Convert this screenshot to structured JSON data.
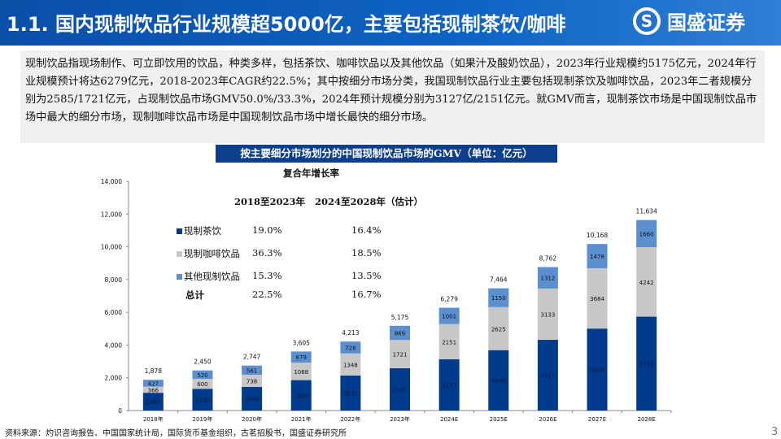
{
  "header": {
    "title": "1.1. 国内现制饮品行业规模超5000亿，主要包括现制茶饮/咖啡",
    "logo_text": "国盛证券",
    "logo_mark": "S"
  },
  "summary": "现制饮品指现场制作、可立即饮用的饮品，种类多样，包括茶饮、咖啡饮品以及其他饮品（如果汁及酸奶饮品），2023年行业规模约5175亿元，2024年行业规模预计将达6279亿元，2018-2023年CAGR约22.5%；其中按细分市场分类，我国现制饮品行业主要包括现制茶饮及咖啡饮品，2023年二者规模分别为2585/1721亿元，占现制饮品市场GMV50.0%/33.3%，2024年预计规模分别为3127亿/2151亿元。就GMV而言，现制茶饮市场是中国现制饮品市场中最大的细分市场，现制咖啡饮品市场是中国现制饮品市场中增长最快的细分市场。",
  "cagr_table": {
    "title": "复合年增长率",
    "col1": "2018至2023年",
    "col2": "2024至2028年（估计）",
    "rows": [
      {
        "label": "现制茶饮",
        "v1": "19.0%",
        "v2": "16.4%"
      },
      {
        "label": "现制咖啡饮品",
        "v1": "36.3%",
        "v2": "18.5%"
      },
      {
        "label": "其他现制饮品",
        "v1": "15.3%",
        "v2": "13.5%"
      },
      {
        "label": "总计",
        "v1": "22.5%",
        "v2": "16.7%"
      }
    ]
  },
  "chart_data": {
    "type": "bar",
    "stacked": true,
    "title": "按主要细分市场划分的中国现制饮品市场的GMV（单位：亿元）",
    "categories": [
      "2018年",
      "2019年",
      "2020年",
      "2021年",
      "2022年",
      "2023年",
      "2024E",
      "2025E",
      "2026E",
      "2027E",
      "2028E"
    ],
    "series": [
      {
        "name": "现制茶饮",
        "color": "#003a8c",
        "values": [
          1085,
          1330,
          1448,
          1858,
          2137,
          2585,
          3127,
          3689,
          4317,
          5006,
          5732
        ]
      },
      {
        "name": "现制咖啡饮品",
        "color": "#c8c8c8",
        "values": [
          366,
          600,
          738,
          1068,
          1348,
          1721,
          2151,
          2625,
          3133,
          3684,
          4242
        ]
      },
      {
        "name": "其他现制饮品",
        "color": "#5b8fd0",
        "values": [
          427,
          520,
          561,
          679,
          728,
          869,
          1001,
          1150,
          1312,
          1478,
          1660
        ]
      }
    ],
    "totals": [
      "1,878",
      "2,450",
      "2,747",
      "3,605",
      "4,213",
      "5,175",
      "6,279",
      "7,464",
      "8,762",
      "10,168",
      "11,634"
    ],
    "ylim": [
      0,
      14000
    ],
    "yticks": [
      "0",
      "2,000",
      "4,000",
      "6,000",
      "8,000",
      "10,000",
      "12,000",
      "14,000"
    ],
    "grid": false
  },
  "footer": "资料来源：灼识咨询报告、中国国家统计局，国际货币基金组织，古茗招股书，国盛证券研究所",
  "page_number": "3"
}
